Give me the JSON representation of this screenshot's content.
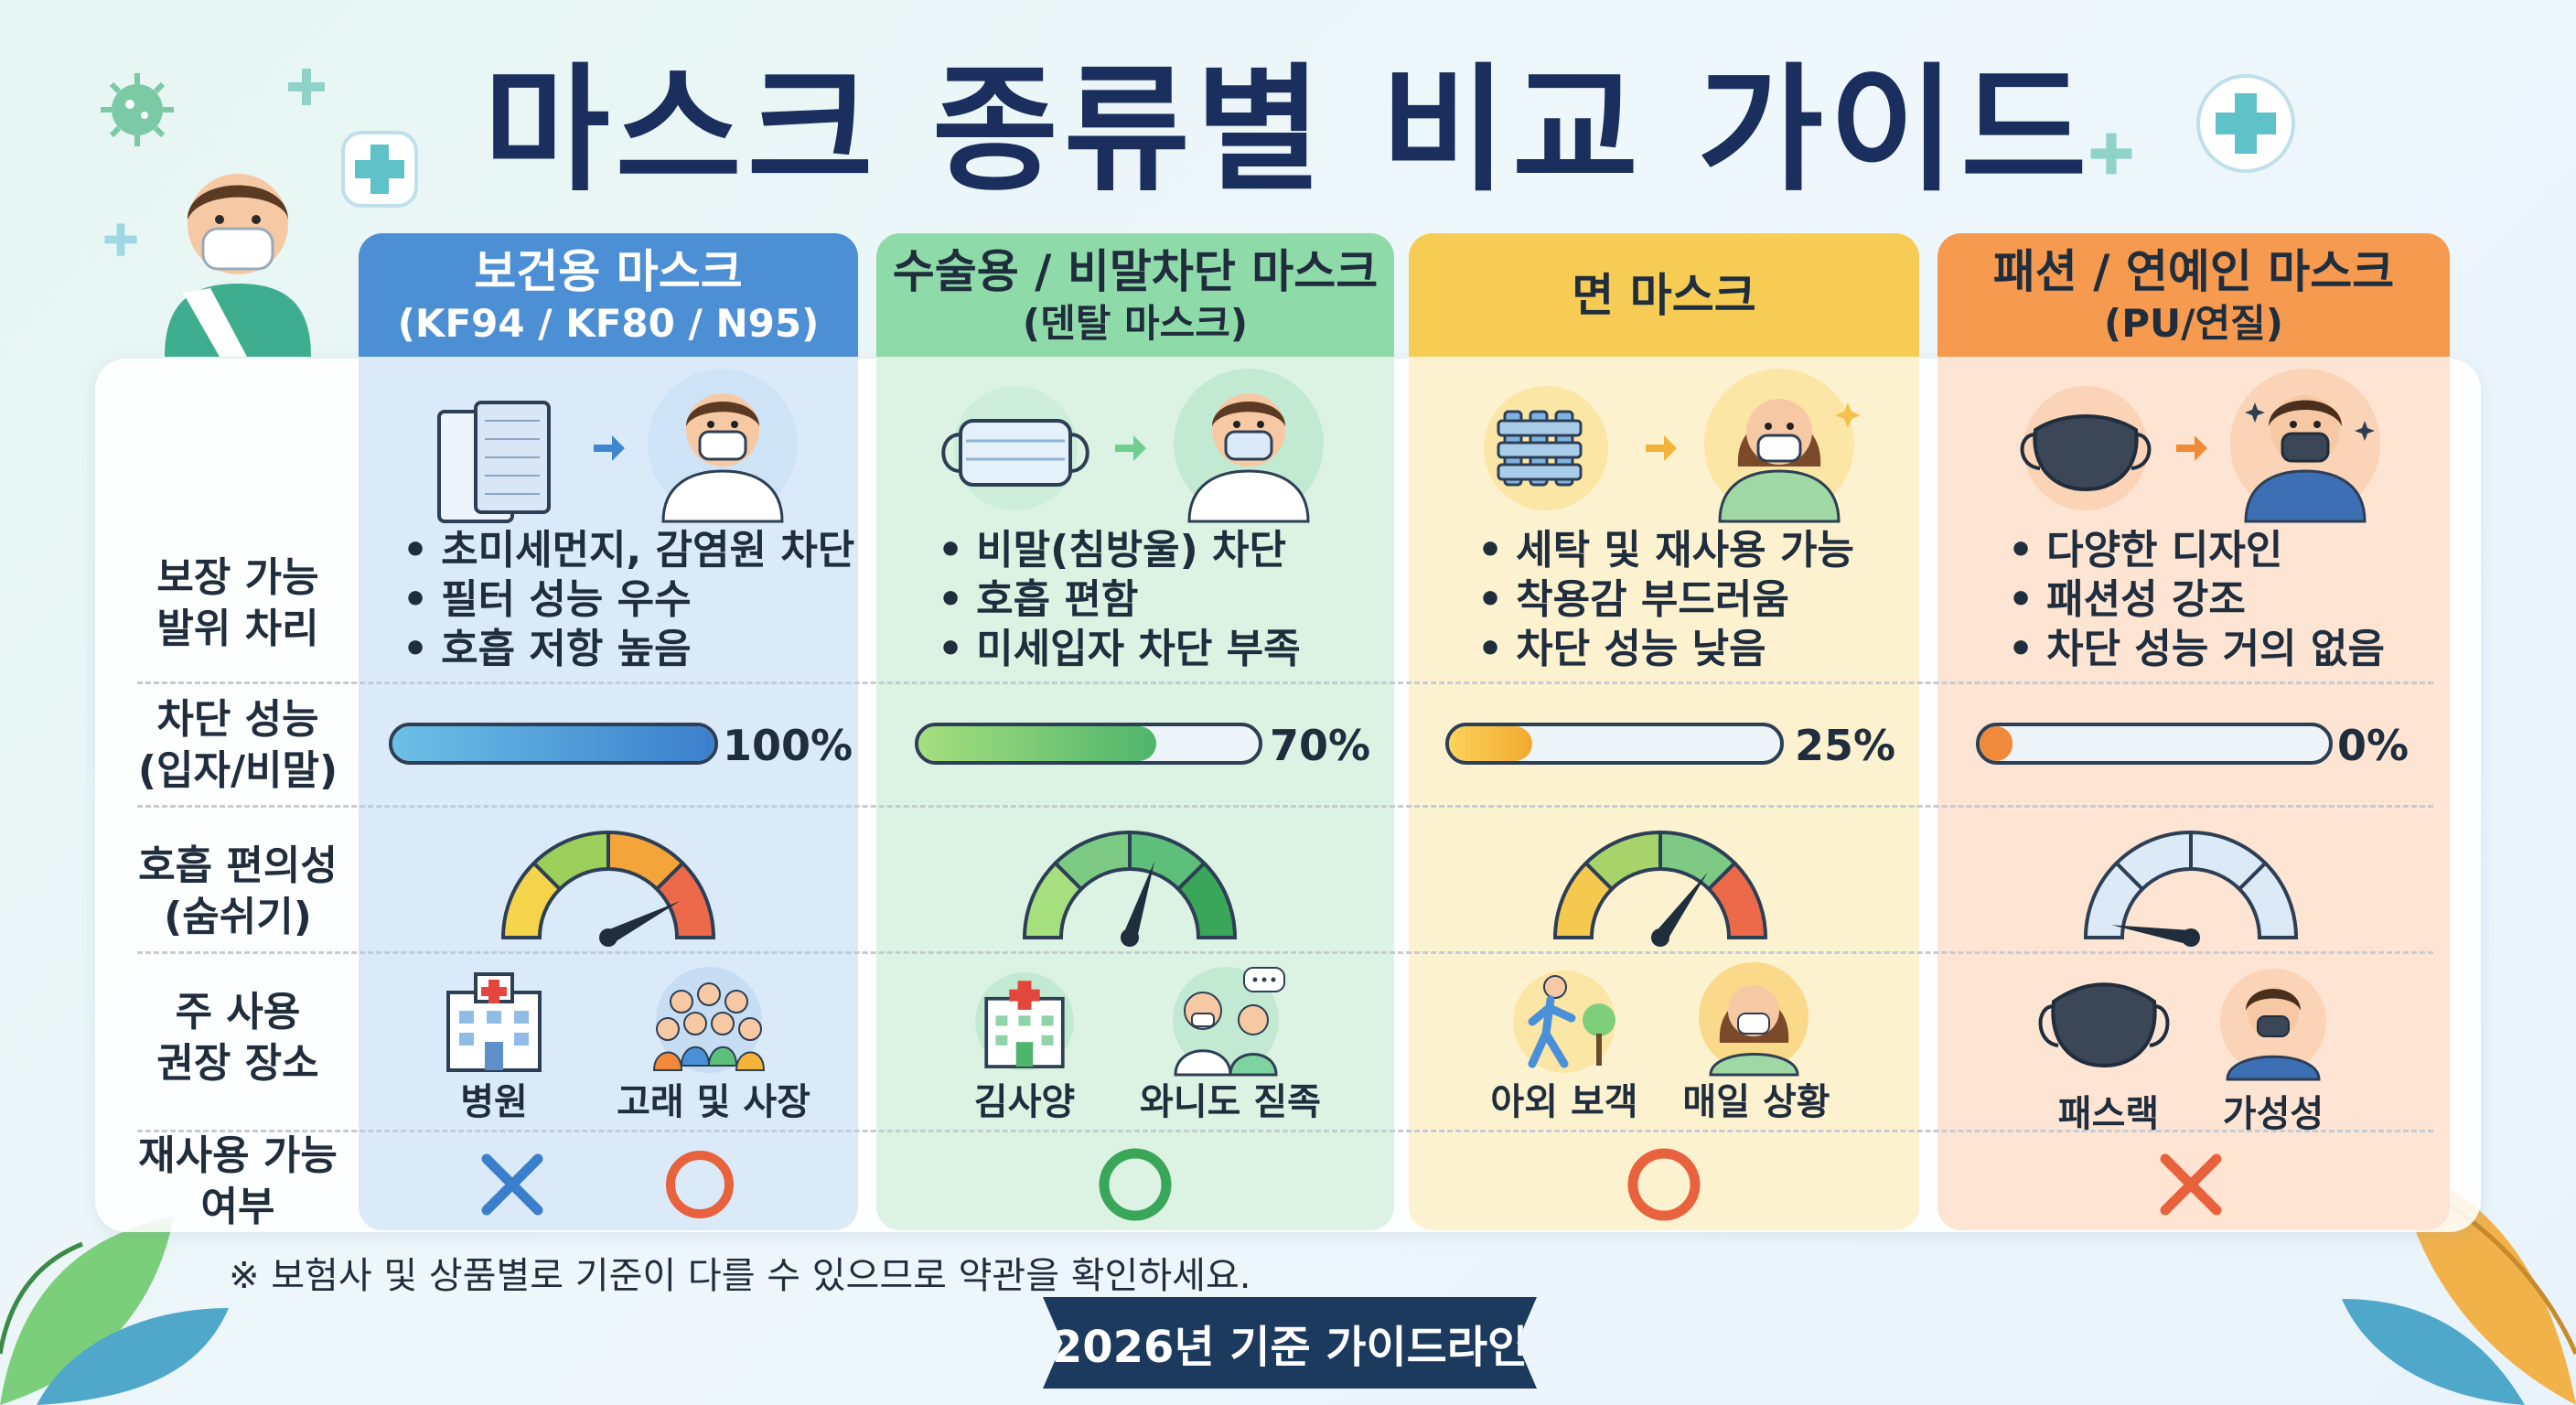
{
  "title": "마스크 종류별 비교 가이드",
  "row_labels": {
    "coverage": [
      "보장 가능",
      "발위 차리"
    ],
    "blocking": [
      "차단 성능",
      "(입자/비말)"
    ],
    "breathing": [
      "호흡 편의성",
      "(숨쉬기)"
    ],
    "places": [
      "주 사용",
      "권장 장소"
    ],
    "reuse": [
      "재사용 가능",
      "여부"
    ]
  },
  "columns": [
    {
      "name": "보건용 마스크",
      "sub": "(KF94 / KF80 / N95)",
      "header_color": "#4d8fd4",
      "body_color": "#dbeaf8",
      "bullets": [
        "초미세먼지, 감염원 차단",
        "필터 성능 우수",
        "호흡 저항 높음"
      ],
      "block_percent": 100,
      "block_label": "100%",
      "fill_color": "#4a90d9",
      "gauge_level": 0.85,
      "places": [
        "병원",
        "고래 및 사장"
      ],
      "reuse_symbol": "✕ / ○"
    },
    {
      "name": "수술용 / 비말차단 마스크",
      "sub": "(덴탈 마스크)",
      "header_color": "#7fd3a0",
      "body_color": "#dcf3e3",
      "bullets": [
        "비말(침방울) 차단",
        "호흡 편함",
        "미세입자 차단 부족"
      ],
      "block_percent": 70,
      "block_label": "70%",
      "fill_color": "#5dbf7a",
      "gauge_level": 0.6,
      "places": [
        "김사양",
        "와니도 짇족"
      ],
      "reuse_symbol": "○"
    },
    {
      "name": "면 마스크",
      "sub": "",
      "header_color": "#f5c94e",
      "body_color": "#fdf2cf",
      "bullets": [
        "세탁 및 재사용 가능",
        "착용감 부드러움",
        "차단 성능 낮음"
      ],
      "block_percent": 25,
      "block_label": "25%",
      "fill_color": "#f4b43a",
      "gauge_level": 0.7,
      "places": [
        "아외 보객",
        "매일 상황"
      ],
      "reuse_symbol": "○"
    },
    {
      "name": "패션 / 연예인 마스크",
      "sub": "(PU/연질)",
      "header_color": "#f59a4f",
      "body_color": "#fde4d3",
      "bullets": [
        "다양한 디자인",
        "패션성 강조",
        "차단 성능 거의 없음"
      ],
      "block_percent": 0,
      "block_label": "0%",
      "fill_color": "#f08a3a",
      "gauge_level": 0.05,
      "places": [
        "패스랙",
        "가성성"
      ],
      "reuse_symbol": "✕"
    }
  ],
  "footnote": "※ 보험사 및 상품별로 기준이 다를 수 있으므로 약관을 확인하세요.",
  "ribbon": "2026년 기준 가이드라인"
}
